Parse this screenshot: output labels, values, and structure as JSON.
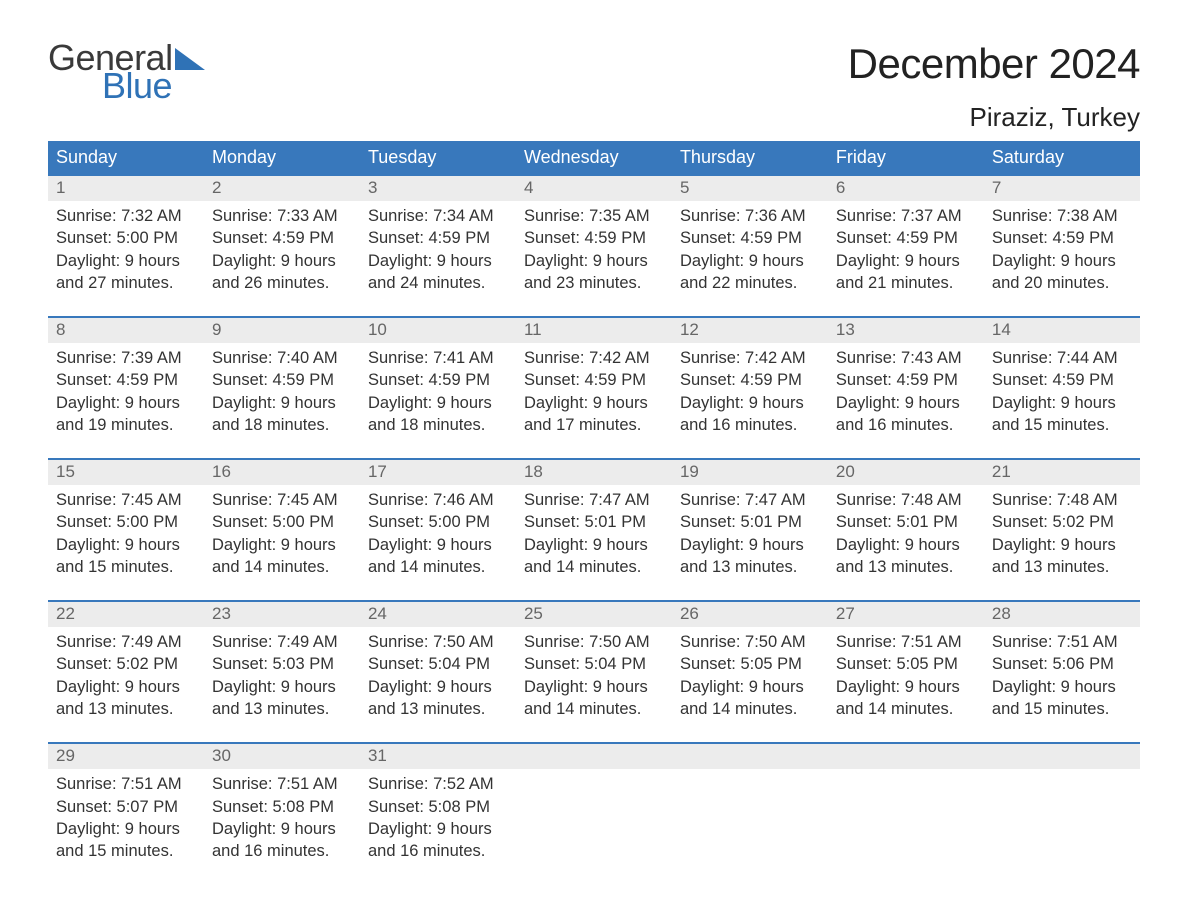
{
  "logo": {
    "word1": "General",
    "word2": "Blue",
    "triangle_color": "#2f72b6"
  },
  "title": "December 2024",
  "subtitle": "Piraziz, Turkey",
  "colors": {
    "header_bg": "#3878bc",
    "header_text": "#ffffff",
    "daynum_bg": "#ececec",
    "daynum_text": "#666666",
    "border_top": "#3878bc",
    "body_text": "#333333"
  },
  "day_headers": [
    "Sunday",
    "Monday",
    "Tuesday",
    "Wednesday",
    "Thursday",
    "Friday",
    "Saturday"
  ],
  "weeks": [
    [
      {
        "n": "1",
        "sr": "Sunrise: 7:32 AM",
        "ss": "Sunset: 5:00 PM",
        "d1": "Daylight: 9 hours",
        "d2": "and 27 minutes."
      },
      {
        "n": "2",
        "sr": "Sunrise: 7:33 AM",
        "ss": "Sunset: 4:59 PM",
        "d1": "Daylight: 9 hours",
        "d2": "and 26 minutes."
      },
      {
        "n": "3",
        "sr": "Sunrise: 7:34 AM",
        "ss": "Sunset: 4:59 PM",
        "d1": "Daylight: 9 hours",
        "d2": "and 24 minutes."
      },
      {
        "n": "4",
        "sr": "Sunrise: 7:35 AM",
        "ss": "Sunset: 4:59 PM",
        "d1": "Daylight: 9 hours",
        "d2": "and 23 minutes."
      },
      {
        "n": "5",
        "sr": "Sunrise: 7:36 AM",
        "ss": "Sunset: 4:59 PM",
        "d1": "Daylight: 9 hours",
        "d2": "and 22 minutes."
      },
      {
        "n": "6",
        "sr": "Sunrise: 7:37 AM",
        "ss": "Sunset: 4:59 PM",
        "d1": "Daylight: 9 hours",
        "d2": "and 21 minutes."
      },
      {
        "n": "7",
        "sr": "Sunrise: 7:38 AM",
        "ss": "Sunset: 4:59 PM",
        "d1": "Daylight: 9 hours",
        "d2": "and 20 minutes."
      }
    ],
    [
      {
        "n": "8",
        "sr": "Sunrise: 7:39 AM",
        "ss": "Sunset: 4:59 PM",
        "d1": "Daylight: 9 hours",
        "d2": "and 19 minutes."
      },
      {
        "n": "9",
        "sr": "Sunrise: 7:40 AM",
        "ss": "Sunset: 4:59 PM",
        "d1": "Daylight: 9 hours",
        "d2": "and 18 minutes."
      },
      {
        "n": "10",
        "sr": "Sunrise: 7:41 AM",
        "ss": "Sunset: 4:59 PM",
        "d1": "Daylight: 9 hours",
        "d2": "and 18 minutes."
      },
      {
        "n": "11",
        "sr": "Sunrise: 7:42 AM",
        "ss": "Sunset: 4:59 PM",
        "d1": "Daylight: 9 hours",
        "d2": "and 17 minutes."
      },
      {
        "n": "12",
        "sr": "Sunrise: 7:42 AM",
        "ss": "Sunset: 4:59 PM",
        "d1": "Daylight: 9 hours",
        "d2": "and 16 minutes."
      },
      {
        "n": "13",
        "sr": "Sunrise: 7:43 AM",
        "ss": "Sunset: 4:59 PM",
        "d1": "Daylight: 9 hours",
        "d2": "and 16 minutes."
      },
      {
        "n": "14",
        "sr": "Sunrise: 7:44 AM",
        "ss": "Sunset: 4:59 PM",
        "d1": "Daylight: 9 hours",
        "d2": "and 15 minutes."
      }
    ],
    [
      {
        "n": "15",
        "sr": "Sunrise: 7:45 AM",
        "ss": "Sunset: 5:00 PM",
        "d1": "Daylight: 9 hours",
        "d2": "and 15 minutes."
      },
      {
        "n": "16",
        "sr": "Sunrise: 7:45 AM",
        "ss": "Sunset: 5:00 PM",
        "d1": "Daylight: 9 hours",
        "d2": "and 14 minutes."
      },
      {
        "n": "17",
        "sr": "Sunrise: 7:46 AM",
        "ss": "Sunset: 5:00 PM",
        "d1": "Daylight: 9 hours",
        "d2": "and 14 minutes."
      },
      {
        "n": "18",
        "sr": "Sunrise: 7:47 AM",
        "ss": "Sunset: 5:01 PM",
        "d1": "Daylight: 9 hours",
        "d2": "and 14 minutes."
      },
      {
        "n": "19",
        "sr": "Sunrise: 7:47 AM",
        "ss": "Sunset: 5:01 PM",
        "d1": "Daylight: 9 hours",
        "d2": "and 13 minutes."
      },
      {
        "n": "20",
        "sr": "Sunrise: 7:48 AM",
        "ss": "Sunset: 5:01 PM",
        "d1": "Daylight: 9 hours",
        "d2": "and 13 minutes."
      },
      {
        "n": "21",
        "sr": "Sunrise: 7:48 AM",
        "ss": "Sunset: 5:02 PM",
        "d1": "Daylight: 9 hours",
        "d2": "and 13 minutes."
      }
    ],
    [
      {
        "n": "22",
        "sr": "Sunrise: 7:49 AM",
        "ss": "Sunset: 5:02 PM",
        "d1": "Daylight: 9 hours",
        "d2": "and 13 minutes."
      },
      {
        "n": "23",
        "sr": "Sunrise: 7:49 AM",
        "ss": "Sunset: 5:03 PM",
        "d1": "Daylight: 9 hours",
        "d2": "and 13 minutes."
      },
      {
        "n": "24",
        "sr": "Sunrise: 7:50 AM",
        "ss": "Sunset: 5:04 PM",
        "d1": "Daylight: 9 hours",
        "d2": "and 13 minutes."
      },
      {
        "n": "25",
        "sr": "Sunrise: 7:50 AM",
        "ss": "Sunset: 5:04 PM",
        "d1": "Daylight: 9 hours",
        "d2": "and 14 minutes."
      },
      {
        "n": "26",
        "sr": "Sunrise: 7:50 AM",
        "ss": "Sunset: 5:05 PM",
        "d1": "Daylight: 9 hours",
        "d2": "and 14 minutes."
      },
      {
        "n": "27",
        "sr": "Sunrise: 7:51 AM",
        "ss": "Sunset: 5:05 PM",
        "d1": "Daylight: 9 hours",
        "d2": "and 14 minutes."
      },
      {
        "n": "28",
        "sr": "Sunrise: 7:51 AM",
        "ss": "Sunset: 5:06 PM",
        "d1": "Daylight: 9 hours",
        "d2": "and 15 minutes."
      }
    ],
    [
      {
        "n": "29",
        "sr": "Sunrise: 7:51 AM",
        "ss": "Sunset: 5:07 PM",
        "d1": "Daylight: 9 hours",
        "d2": "and 15 minutes."
      },
      {
        "n": "30",
        "sr": "Sunrise: 7:51 AM",
        "ss": "Sunset: 5:08 PM",
        "d1": "Daylight: 9 hours",
        "d2": "and 16 minutes."
      },
      {
        "n": "31",
        "sr": "Sunrise: 7:52 AM",
        "ss": "Sunset: 5:08 PM",
        "d1": "Daylight: 9 hours",
        "d2": "and 16 minutes."
      },
      null,
      null,
      null,
      null
    ]
  ]
}
